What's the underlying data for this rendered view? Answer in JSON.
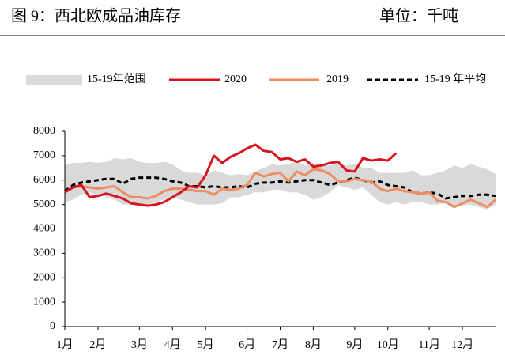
{
  "chart_data": {
    "type": "line",
    "title": "图 9：西北欧成品油库存",
    "unit": "单位：千吨",
    "categories": [
      "1月",
      null,
      null,
      null,
      "2月",
      null,
      null,
      null,
      null,
      "3月",
      null,
      null,
      null,
      "4月",
      null,
      null,
      null,
      "5月",
      null,
      null,
      null,
      null,
      "6月",
      null,
      null,
      null,
      "7月",
      null,
      null,
      null,
      "8月",
      null,
      null,
      null,
      null,
      "9月",
      null,
      null,
      null,
      "10月",
      null,
      null,
      null,
      null,
      "11月",
      null,
      null,
      null,
      "12月",
      null,
      null,
      null,
      null
    ],
    "ylim": [
      0,
      8000
    ],
    "yticks": [
      0,
      1000,
      2000,
      3000,
      4000,
      5000,
      6000,
      7000,
      8000
    ],
    "range": {
      "name": "15-19年范围",
      "color": "#d9d9d9",
      "high": [
        6600,
        6700,
        6700,
        6750,
        6700,
        6750,
        6900,
        6850,
        6900,
        6750,
        6700,
        6700,
        6750,
        6650,
        6400,
        6300,
        6300,
        6200,
        6400,
        6300,
        6200,
        6250,
        6200,
        6350,
        6500,
        6650,
        6600,
        6650,
        6750,
        6600,
        6700,
        6600,
        6600,
        6700,
        6600,
        6650,
        6500,
        6500,
        6300,
        6300,
        6300,
        6300,
        6400,
        6200,
        6200,
        6300,
        6400,
        6600,
        6500,
        6650,
        6550,
        6450,
        6250
      ],
      "low": [
        5100,
        5200,
        5400,
        5500,
        5400,
        5300,
        5200,
        5000,
        5000,
        5000,
        5000,
        5100,
        5200,
        5300,
        5200,
        5100,
        5000,
        5000,
        5000,
        5050,
        5300,
        5300,
        5400,
        5500,
        5500,
        5600,
        5600,
        5500,
        5500,
        5400,
        5200,
        5300,
        5500,
        5800,
        5700,
        5600,
        5700,
        5400,
        5100,
        5000,
        5100,
        5000,
        5100,
        5100,
        5000,
        5000,
        5050,
        4900,
        4950,
        5000,
        4900,
        4800,
        5000
      ]
    },
    "series": [
      {
        "name": "2020",
        "color": "#d7141e",
        "dashed": false,
        "values": [
          5500,
          5700,
          5800,
          5300,
          5350,
          5450,
          5350,
          5250,
          5050,
          5000,
          4950,
          5000,
          5100,
          5300,
          5500,
          5750,
          5700,
          6200,
          7000,
          6700,
          6950,
          7100,
          7300,
          7450,
          7200,
          7150,
          6850,
          6900,
          6750,
          6850,
          6550,
          6600,
          6700,
          6750,
          6400,
          6350,
          6900,
          6800,
          6850,
          6800,
          7100,
          null,
          null,
          null,
          null,
          null,
          null,
          null,
          null,
          null,
          null,
          null,
          null
        ]
      },
      {
        "name": "2019",
        "color": "#f08c64",
        "dashed": false,
        "values": [
          5500,
          5700,
          5750,
          5700,
          5650,
          5700,
          5750,
          5500,
          5300,
          5300,
          5250,
          5350,
          5550,
          5650,
          5650,
          5600,
          5550,
          5550,
          5400,
          5650,
          5600,
          5650,
          5800,
          6300,
          6150,
          6250,
          6300,
          5950,
          6350,
          6200,
          6450,
          6400,
          6250,
          5950,
          5950,
          6050,
          6000,
          5950,
          5650,
          5550,
          5650,
          5550,
          5500,
          5450,
          5500,
          5150,
          5100,
          4900,
          5050,
          5200,
          5050,
          4900,
          5200
        ]
      },
      {
        "name": "15-19 年平均",
        "color": "#000000",
        "dashed": true,
        "values": [
          5550,
          5800,
          5900,
          5950,
          6000,
          6050,
          6050,
          5850,
          6050,
          6100,
          6100,
          6100,
          6050,
          5950,
          5900,
          5750,
          5750,
          5700,
          5750,
          5700,
          5700,
          5750,
          5700,
          5850,
          5900,
          5900,
          5950,
          5900,
          5950,
          6000,
          6000,
          5900,
          5800,
          5900,
          6000,
          6100,
          6000,
          5900,
          5950,
          5800,
          5750,
          5700,
          5500,
          5450,
          5500,
          5450,
          5250,
          5300,
          5350,
          5350,
          5400,
          5400,
          5350
        ]
      }
    ]
  }
}
